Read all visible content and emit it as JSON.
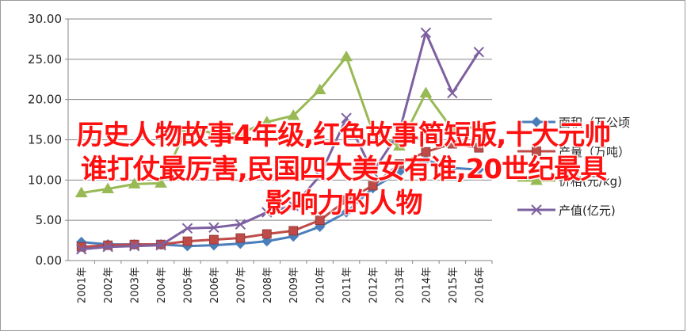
{
  "chart_data": {
    "type": "line",
    "categories": [
      "2001年",
      "2002年",
      "2003年",
      "2004年",
      "2005年",
      "2006年",
      "2007年",
      "2008年",
      "2009年",
      "2010年",
      "2011年",
      "2012年",
      "2013年",
      "2014年",
      "2015年",
      "2016年"
    ],
    "ylim": [
      0,
      30
    ],
    "yticks": [
      "0.00",
      "5.00",
      "10.00",
      "15.00",
      "20.00",
      "25.00",
      "30.00"
    ],
    "grid": true,
    "legend_position": "right",
    "series": [
      {
        "name": "面积（万公顷",
        "color": "#4a7ebb",
        "marker": "diamond",
        "values": [
          2.3,
          2.0,
          2.0,
          2.0,
          1.8,
          1.9,
          2.1,
          2.4,
          3.0,
          4.2,
          6.0,
          9.0,
          11.0,
          12.5,
          11.5,
          11.3
        ]
      },
      {
        "name": "产量（万吨）",
        "color": "#be4b48",
        "marker": "square",
        "values": [
          1.7,
          1.9,
          2.0,
          2.0,
          2.4,
          2.6,
          2.8,
          3.3,
          3.7,
          5.0,
          7.5,
          9.3,
          12.0,
          13.5,
          14.5,
          14.0
        ]
      },
      {
        "name": "价格(元/kg)",
        "color": "#98b954",
        "marker": "triangle",
        "values": [
          8.4,
          8.9,
          9.5,
          9.6,
          16.5,
          15.8,
          15.8,
          17.2,
          18.0,
          21.2,
          25.3,
          16.0,
          14.2,
          20.8,
          16.3,
          16.6
        ]
      },
      {
        "name": "产值(亿元)",
        "color": "#7d60a0",
        "marker": "x",
        "values": [
          1.4,
          1.7,
          1.8,
          1.9,
          4.0,
          4.1,
          4.5,
          6.0,
          6.8,
          10.5,
          17.7,
          11.0,
          16.0,
          28.3,
          20.8,
          25.9
        ]
      }
    ]
  },
  "overlay": {
    "line1": "历史人物故事4年级,红色故事简短版,十大元帅",
    "line2": "谁打仗最厉害,民国四大美女有谁,20世纪最具",
    "line3": "影响力的人物"
  }
}
